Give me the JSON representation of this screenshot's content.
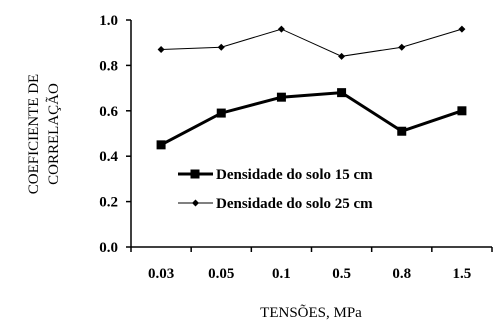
{
  "chart_data": {
    "type": "line",
    "title": "",
    "xlabel": "TENSÕES, MPa",
    "ylabel": [
      "COEFICIENTE DE",
      "CORRELAÇÃO"
    ],
    "categories": [
      "0.03",
      "0.05",
      "0.1",
      "0.5",
      "0.8",
      "1.5"
    ],
    "ylim": [
      0,
      1
    ],
    "yticks": [
      "0.0",
      "0.2",
      "0.4",
      "0.6",
      "0.8",
      "1.0"
    ],
    "grid": false,
    "legend_position": "center-right",
    "series": [
      {
        "name": "Densidade do solo 15 cm",
        "values": [
          0.45,
          0.59,
          0.66,
          0.68,
          0.51,
          0.6
        ],
        "marker": "square",
        "color": "#000000"
      },
      {
        "name": "Densidade do solo 25 cm",
        "values": [
          0.87,
          0.88,
          0.96,
          0.84,
          0.88,
          0.96
        ],
        "marker": "diamond",
        "color": "#000000"
      }
    ]
  }
}
